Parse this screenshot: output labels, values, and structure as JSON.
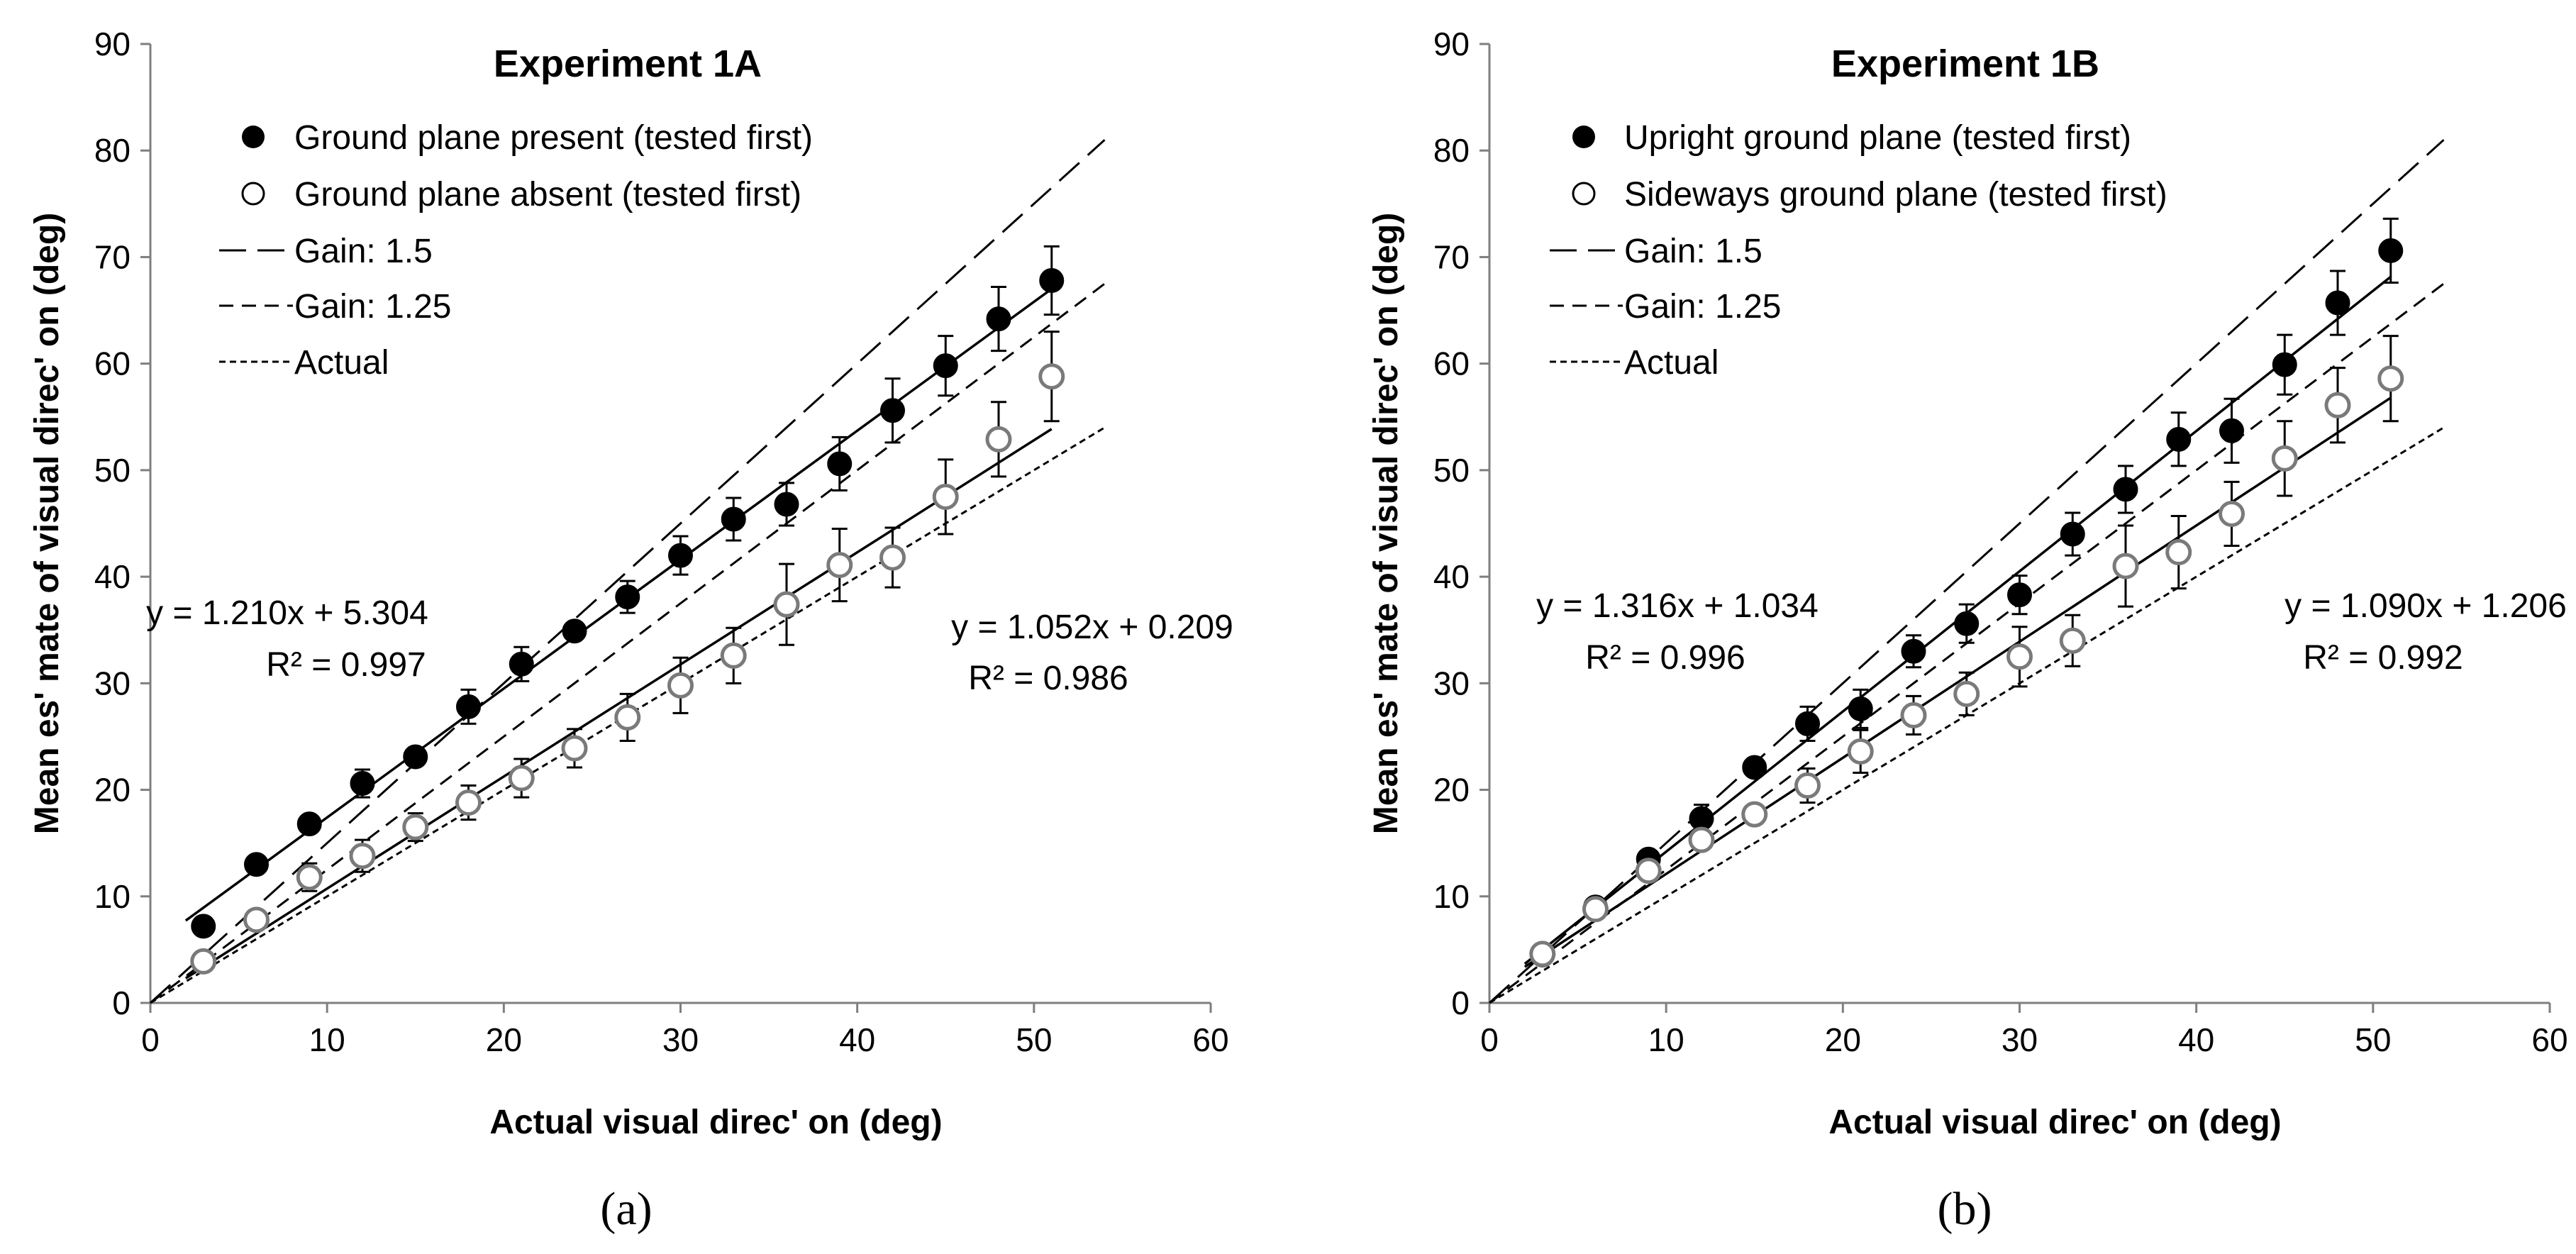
{
  "chart_data": [
    {
      "type": "scatter",
      "title": "Experiment 1A",
      "panel_label": "(a)",
      "xlabel": "Actual visual direc' on (deg)",
      "ylabel": "Mean es' mate of visual direc' on (deg)",
      "xlim": [
        0,
        60
      ],
      "ylim": [
        0,
        90
      ],
      "x_ticks": [
        0,
        10,
        20,
        30,
        40,
        50,
        60
      ],
      "y_ticks": [
        0,
        10,
        20,
        30,
        40,
        50,
        60,
        70,
        80,
        90
      ],
      "grid": false,
      "legend_position": "top-left",
      "x": [
        3,
        6,
        9,
        12,
        15,
        18,
        21,
        24,
        27,
        30,
        33,
        36,
        39,
        42,
        45,
        48,
        51
      ],
      "series": [
        {
          "name": "Ground plane present (tested first)",
          "marker": "filled",
          "values": [
            7.2,
            13,
            16.8,
            20.6,
            23.1,
            27.8,
            31.8,
            34.9,
            38.1,
            42,
            45.4,
            46.8,
            50.6,
            55.6,
            59.8,
            64.2,
            67.8
          ],
          "errors": [
            1.0,
            1.0,
            1.2,
            1.3,
            1.2,
            1.6,
            1.6,
            1.2,
            1.5,
            1.8,
            2.0,
            2.0,
            2.5,
            3.0,
            2.8,
            3.0,
            3.2
          ],
          "fit": {
            "slope": 1.21,
            "intercept": 5.304,
            "equation": "y = 1.210x + 5.304",
            "r2": "R² = 0.997",
            "label_position": "left"
          }
        },
        {
          "name": "Ground plane absent (tested first)",
          "marker": "open",
          "values": [
            3.9,
            7.8,
            11.8,
            13.8,
            16.5,
            18.8,
            21.1,
            23.9,
            26.8,
            29.8,
            32.6,
            37.4,
            41.1,
            41.8,
            47.5,
            52.9,
            58.8
          ],
          "errors": [
            0.8,
            0.9,
            1.3,
            1.5,
            1.3,
            1.6,
            1.8,
            1.8,
            2.2,
            2.6,
            2.6,
            3.8,
            3.4,
            2.8,
            3.5,
            3.5,
            4.2
          ],
          "fit": {
            "slope": 1.052,
            "intercept": 0.209,
            "equation": "y = 1.052x + 0.209",
            "r2": "R² = 0.986",
            "label_position": "right"
          }
        }
      ],
      "reference_lines": [
        {
          "name": "Gain: 1.5",
          "slope": 1.5,
          "style": "long-dash"
        },
        {
          "name": "Gain: 1.25",
          "slope": 1.25,
          "style": "short-dash"
        },
        {
          "name": "Actual",
          "slope": 1.0,
          "style": "dotted"
        }
      ]
    },
    {
      "type": "scatter",
      "title": "Experiment 1B",
      "panel_label": "(b)",
      "xlabel": "Actual visual direc' on (deg)",
      "ylabel": "Mean es' mate of visual direc' on (deg)",
      "xlim": [
        0,
        60
      ],
      "ylim": [
        0,
        90
      ],
      "x_ticks": [
        0,
        10,
        20,
        30,
        40,
        50,
        60
      ],
      "y_ticks": [
        0,
        10,
        20,
        30,
        40,
        50,
        60,
        70,
        80,
        90
      ],
      "grid": false,
      "legend_position": "top-left",
      "x": [
        3,
        6,
        9,
        12,
        15,
        18,
        21,
        24,
        27,
        30,
        33,
        36,
        39,
        42,
        45,
        48,
        51
      ],
      "series": [
        {
          "name": "Upright ground plane  (tested first)",
          "marker": "filled",
          "values": [
            4.5,
            9,
            13.5,
            17.3,
            22.1,
            26.2,
            27.6,
            33,
            35.6,
            38.3,
            44,
            48.2,
            52.9,
            53.7,
            59.9,
            65.7,
            70.6
          ],
          "errors": [
            0.8,
            1.0,
            1.2,
            1.3,
            1.2,
            1.6,
            1.8,
            1.5,
            1.8,
            1.8,
            2.0,
            2.2,
            2.5,
            3.0,
            2.8,
            3.0,
            3.0
          ],
          "fit": {
            "slope": 1.316,
            "intercept": 1.034,
            "equation": "y = 1.316x + 1.034",
            "r2": "R² = 0.996",
            "label_position": "left"
          }
        },
        {
          "name": "Sideways ground plane (tested first)",
          "marker": "open",
          "values": [
            4.6,
            8.8,
            12.4,
            15.3,
            17.7,
            20.4,
            23.6,
            27,
            29,
            32.5,
            34,
            41,
            42.3,
            45.9,
            51.1,
            56.1,
            58.6
          ],
          "errors": [
            0.8,
            0.9,
            1.2,
            1.2,
            1.2,
            1.6,
            2.0,
            1.8,
            2.0,
            2.8,
            2.4,
            3.8,
            3.4,
            3.0,
            3.5,
            3.5,
            4.0
          ],
          "fit": {
            "slope": 1.09,
            "intercept": 1.206,
            "equation": "y = 1.090x + 1.206",
            "r2": "R² = 0.992",
            "label_position": "right"
          }
        }
      ],
      "reference_lines": [
        {
          "name": "Gain: 1.5",
          "slope": 1.5,
          "style": "long-dash"
        },
        {
          "name": "Gain: 1.25",
          "slope": 1.25,
          "style": "short-dash"
        },
        {
          "name": "Actual",
          "slope": 1.0,
          "style": "dotted"
        }
      ]
    }
  ]
}
